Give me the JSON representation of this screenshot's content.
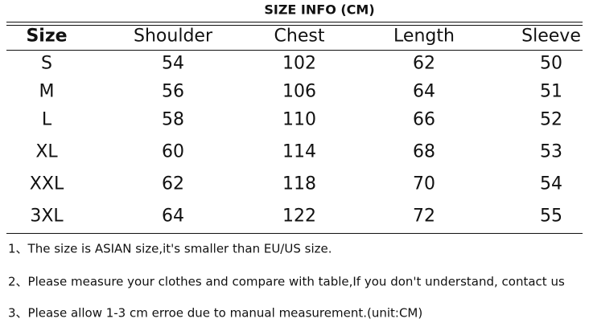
{
  "title": "SIZE INFO (CM)",
  "table": {
    "header": [
      "Size",
      "Shoulder",
      "Chest",
      "Length",
      "Sleeve"
    ],
    "rows": [
      [
        "S",
        54,
        102,
        62,
        50
      ],
      [
        "M",
        56,
        106,
        64,
        51
      ],
      [
        "L",
        58,
        110,
        66,
        52
      ],
      [
        "XL",
        60,
        114,
        68,
        53
      ],
      [
        "XXL",
        62,
        118,
        70,
        54
      ],
      [
        "3XL",
        64,
        122,
        72,
        55
      ]
    ]
  },
  "notes": [
    "1、The size is ASIAN size,it's smaller than EU/US size.",
    "2、Please measure your clothes and compare with table,If you don't understand, contact us",
    "3、Please allow 1-3 cm erroe due to manual measurement.(unit:CM)"
  ]
}
